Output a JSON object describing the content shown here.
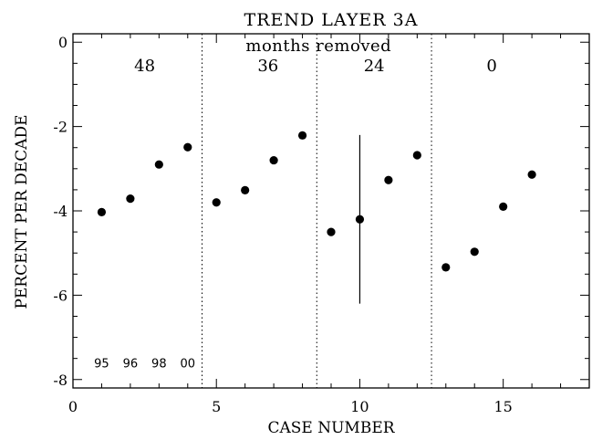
{
  "chart_data": {
    "type": "scatter",
    "title": "TREND LAYER 3A",
    "xlabel": "CASE NUMBER",
    "ylabel": "PERCENT PER DECADE",
    "xlim": [
      0,
      18
    ],
    "ylim": [
      -8.2,
      0.2
    ],
    "xticks": [
      0,
      5,
      10,
      15
    ],
    "xtick_labels": [
      "0",
      "5",
      "10",
      "15"
    ],
    "yticks": [
      0,
      -2,
      -4,
      -6,
      -8
    ],
    "ytick_labels": [
      "0",
      "-2",
      "-4",
      "-6",
      "-8"
    ],
    "grid": false,
    "points": [
      {
        "x": 1,
        "y": -4.03
      },
      {
        "x": 2,
        "y": -3.71
      },
      {
        "x": 3,
        "y": -2.9
      },
      {
        "x": 4,
        "y": -2.49
      },
      {
        "x": 5,
        "y": -3.8
      },
      {
        "x": 6,
        "y": -3.51
      },
      {
        "x": 7,
        "y": -2.8
      },
      {
        "x": 8,
        "y": -2.21
      },
      {
        "x": 9,
        "y": -4.5
      },
      {
        "x": 10,
        "y": -4.2
      },
      {
        "x": 11,
        "y": -3.27
      },
      {
        "x": 12,
        "y": -2.68
      },
      {
        "x": 13,
        "y": -5.34
      },
      {
        "x": 14,
        "y": -4.97
      },
      {
        "x": 15,
        "y": -3.9
      },
      {
        "x": 16,
        "y": -3.14
      }
    ],
    "error_bars": [
      {
        "x": 10,
        "y_low": -6.2,
        "y_high": -2.2
      }
    ],
    "dividers": [
      4.5,
      8.5,
      12.5
    ],
    "group_header": "months removed",
    "groups": [
      {
        "label": "48",
        "x_center": 2.5
      },
      {
        "label": "36",
        "x_center": 6.8
      },
      {
        "label": "24",
        "x_center": 10.5
      },
      {
        "label": "0",
        "x_center": 14.6
      }
    ],
    "year_labels": [
      {
        "label": "95",
        "x": 1
      },
      {
        "label": "96",
        "x": 2
      },
      {
        "label": "98",
        "x": 3
      },
      {
        "label": "00",
        "x": 4
      }
    ],
    "year_labels_y": -7.6
  }
}
